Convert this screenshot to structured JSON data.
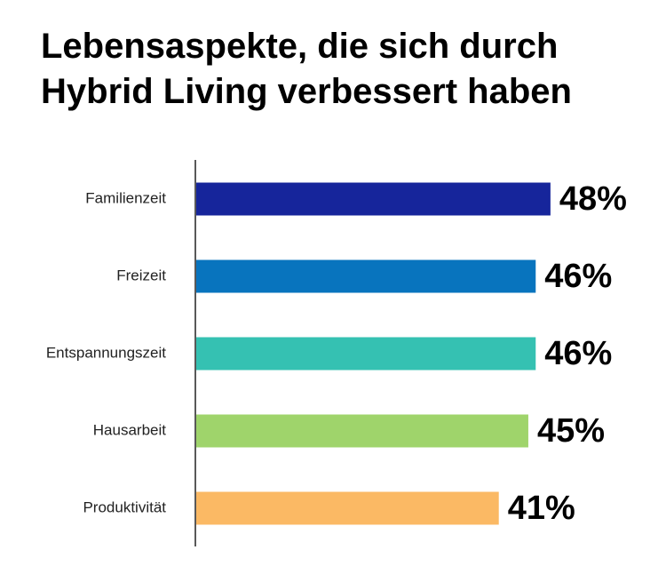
{
  "chart_data": {
    "type": "bar",
    "orientation": "horizontal",
    "title_lines": [
      "Lebensaspekte, die sich durch",
      "Hybrid Living verbessert haben"
    ],
    "categories": [
      "Familienzeit",
      "Freizeit",
      "Entspannungszeit",
      "Hausarbeit",
      "Produktivität"
    ],
    "values": [
      48,
      46,
      46,
      45,
      41
    ],
    "value_labels": [
      "48%",
      "46%",
      "46%",
      "45%",
      "41%"
    ],
    "colors": [
      "#16259b",
      "#0874be",
      "#35c1b2",
      "#9fd46b",
      "#fbb964"
    ]
  }
}
